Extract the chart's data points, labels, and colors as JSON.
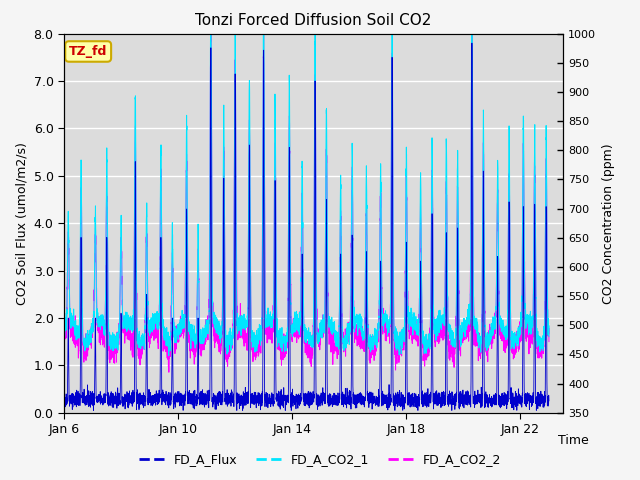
{
  "title": "Tonzi Forced Diffusion Soil CO2",
  "xlabel": "Time",
  "ylabel_left": "CO2 Soil Flux (umol/m2/s)",
  "ylabel_right": "CO2 Concentration (ppm)",
  "ylim_left": [
    0.0,
    8.0
  ],
  "ylim_right": [
    350,
    1000
  ],
  "yticks_left": [
    0.0,
    1.0,
    2.0,
    3.0,
    4.0,
    5.0,
    6.0,
    7.0,
    8.0
  ],
  "yticks_right": [
    350,
    400,
    450,
    500,
    550,
    600,
    650,
    700,
    750,
    800,
    850,
    900,
    950,
    1000
  ],
  "xtick_positions": [
    0,
    4,
    8,
    12,
    16
  ],
  "xtick_labels": [
    "Jan 6",
    "Jan 10",
    "Jan 14",
    "Jan 18",
    "Jan 22"
  ],
  "xlim": [
    0,
    17.5
  ],
  "legend_labels": [
    "FD_A_Flux",
    "FD_A_CO2_1",
    "FD_A_CO2_2"
  ],
  "flux_color": "#0000cd",
  "co2_1_color": "#00e5ff",
  "co2_2_color": "#ff00ff",
  "tag_text": "TZ_fd",
  "tag_facecolor": "#ffffaa",
  "tag_edgecolor": "#ccaa00",
  "tag_textcolor": "#cc0000",
  "plot_bg_color": "#dcdcdc",
  "fig_bg_color": "#f5f5f5",
  "grid_color": "#ffffff",
  "n_points": 4320,
  "seed": 42
}
